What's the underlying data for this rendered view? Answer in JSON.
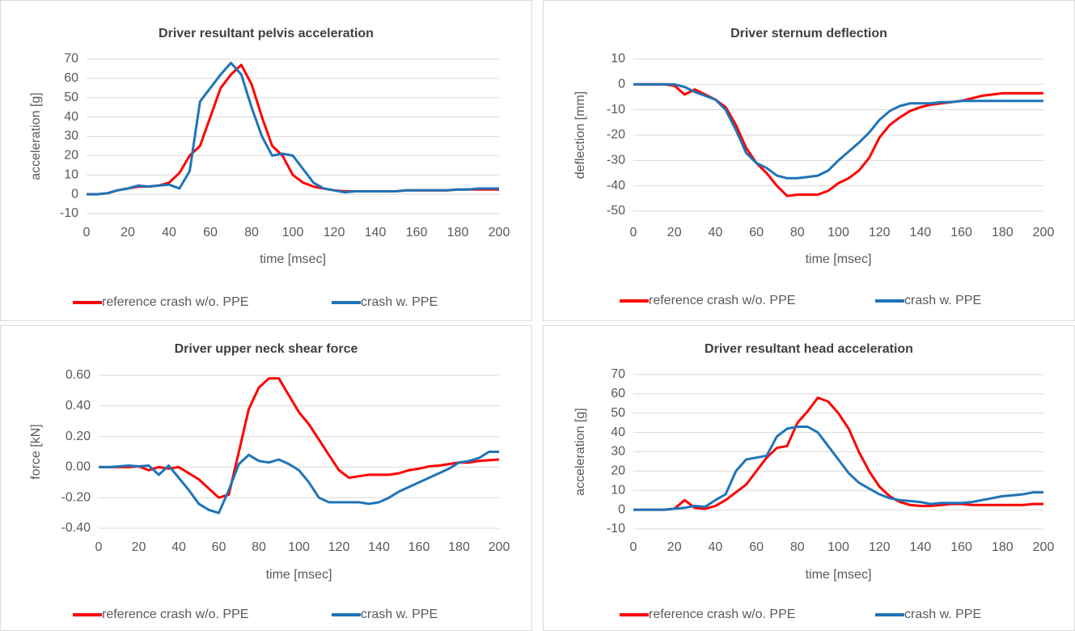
{
  "chart_data": [
    {
      "type": "line",
      "title": "Driver resultant pelvis acceleration",
      "x_label": "time [msec]",
      "y_label": "acceleration [g]",
      "x": [
        0,
        5,
        10,
        15,
        20,
        25,
        30,
        35,
        40,
        45,
        50,
        55,
        60,
        65,
        70,
        75,
        80,
        85,
        90,
        95,
        100,
        105,
        110,
        115,
        120,
        125,
        130,
        135,
        140,
        145,
        150,
        155,
        160,
        165,
        170,
        175,
        180,
        185,
        190,
        195,
        200
      ],
      "series": [
        {
          "name": "reference crash w/o. PPE",
          "color": "#ff0000",
          "values": [
            0,
            0,
            0.5,
            2,
            3,
            4,
            4,
            4.5,
            6,
            11,
            20,
            25,
            40,
            55,
            62,
            67,
            57,
            40,
            25,
            20,
            10,
            6,
            4,
            3,
            2,
            1.5,
            1.5,
            1.5,
            1.5,
            1.5,
            1.5,
            2,
            2,
            2,
            2,
            2,
            2.5,
            2.5,
            2.5,
            2.5,
            2.5
          ]
        },
        {
          "name": "crash w. PPE",
          "color": "#1f74b8",
          "values": [
            0,
            0,
            0.5,
            2,
            3,
            4.5,
            4,
            4.5,
            5,
            3,
            12,
            48,
            55,
            62,
            68,
            62,
            45,
            30,
            20,
            21,
            20,
            13,
            6,
            3,
            2,
            1,
            1.5,
            1.5,
            1.5,
            1.5,
            1.5,
            2,
            2,
            2,
            2,
            2,
            2.5,
            2.5,
            3,
            3,
            3
          ]
        }
      ],
      "xlim": [
        0,
        200
      ],
      "xticks": [
        0,
        20,
        40,
        60,
        80,
        100,
        120,
        140,
        160,
        180,
        200
      ],
      "ylim": [
        -10,
        70
      ],
      "yticks": [
        -10,
        0,
        10,
        20,
        30,
        40,
        50,
        60,
        70
      ],
      "grid": true,
      "legend": "bottom"
    },
    {
      "type": "line",
      "title": "Driver sternum deflection",
      "x_label": "time [msec]",
      "y_label": "deflection [mm]",
      "x": [
        0,
        5,
        10,
        15,
        20,
        25,
        30,
        35,
        40,
        45,
        50,
        55,
        60,
        65,
        70,
        75,
        80,
        85,
        90,
        95,
        100,
        105,
        110,
        115,
        120,
        125,
        130,
        135,
        140,
        145,
        150,
        155,
        160,
        165,
        170,
        175,
        180,
        185,
        190,
        195,
        200
      ],
      "series": [
        {
          "name": "reference crash w/o. PPE",
          "color": "#ff0000",
          "values": [
            0,
            0,
            0,
            0,
            -0.5,
            -4,
            -2,
            -4,
            -6,
            -9,
            -16,
            -25,
            -31,
            -35,
            -40,
            -44,
            -43.5,
            -43.5,
            -43.5,
            -42,
            -39,
            -37,
            -34,
            -29,
            -21,
            -16,
            -13,
            -10.5,
            -9,
            -8,
            -7.5,
            -7,
            -6.5,
            -5.5,
            -4.5,
            -4,
            -3.5,
            -3.5,
            -3.5,
            -3.5,
            -3.5
          ]
        },
        {
          "name": "crash w. PPE",
          "color": "#1f74b8",
          "values": [
            0,
            0,
            0,
            0,
            0,
            -1,
            -3,
            -4.5,
            -6,
            -10,
            -18,
            -27,
            -31,
            -33,
            -36,
            -37,
            -37,
            -36.5,
            -36,
            -34,
            -30,
            -26.5,
            -23,
            -19,
            -14,
            -10.5,
            -8.5,
            -7.5,
            -7.5,
            -7.5,
            -7,
            -7,
            -6.5,
            -6.5,
            -6.5,
            -6.5,
            -6.5,
            -6.5,
            -6.5,
            -6.5,
            -6.5
          ]
        }
      ],
      "xlim": [
        0,
        200
      ],
      "xticks": [
        0,
        20,
        40,
        60,
        80,
        100,
        120,
        140,
        160,
        180,
        200
      ],
      "ylim": [
        -50,
        10
      ],
      "yticks": [
        -50,
        -40,
        -30,
        -20,
        -10,
        0,
        10
      ],
      "grid": true,
      "legend": "bottom"
    },
    {
      "type": "line",
      "title": "Driver upper neck shear force",
      "x_label": "time [msec]",
      "y_label": "force [kN]",
      "x": [
        0,
        5,
        10,
        15,
        20,
        25,
        30,
        35,
        40,
        45,
        50,
        55,
        60,
        65,
        70,
        75,
        80,
        85,
        90,
        95,
        100,
        105,
        110,
        115,
        120,
        125,
        130,
        135,
        140,
        145,
        150,
        155,
        160,
        165,
        170,
        175,
        180,
        185,
        190,
        195,
        200
      ],
      "series": [
        {
          "name": "reference crash w/o. PPE",
          "color": "#ff0000",
          "values": [
            0,
            0,
            0,
            0,
            0.005,
            -0.02,
            0,
            -0.01,
            0,
            -0.04,
            -0.08,
            -0.14,
            -0.2,
            -0.18,
            0.1,
            0.38,
            0.52,
            0.58,
            0.58,
            0.47,
            0.36,
            0.28,
            0.18,
            0.08,
            -0.02,
            -0.07,
            -0.06,
            -0.05,
            -0.05,
            -0.05,
            -0.04,
            -0.02,
            -0.01,
            0.005,
            0.01,
            0.02,
            0.03,
            0.03,
            0.04,
            0.045,
            0.05
          ]
        },
        {
          "name": "crash w. PPE",
          "color": "#1f74b8",
          "values": [
            0,
            0,
            0.005,
            0.01,
            0.005,
            0.01,
            -0.05,
            0.01,
            -0.07,
            -0.15,
            -0.24,
            -0.28,
            -0.3,
            -0.15,
            0.02,
            0.08,
            0.04,
            0.03,
            0.05,
            0.02,
            -0.02,
            -0.1,
            -0.2,
            -0.23,
            -0.23,
            -0.23,
            -0.23,
            -0.24,
            -0.23,
            -0.2,
            -0.16,
            -0.13,
            -0.1,
            -0.07,
            -0.04,
            -0.01,
            0.03,
            0.04,
            0.06,
            0.1,
            0.1
          ]
        }
      ],
      "xlim": [
        0,
        200
      ],
      "xticks": [
        0,
        20,
        40,
        60,
        80,
        100,
        120,
        140,
        160,
        180,
        200
      ],
      "ylim": [
        -0.4,
        0.6
      ],
      "yticks": [
        {
          "value": -0.4,
          "label": "-0.40"
        },
        {
          "value": -0.2,
          "label": "-0.20"
        },
        {
          "value": 0,
          "label": "0.00"
        },
        {
          "value": 0.2,
          "label": "0.20"
        },
        {
          "value": 0.4,
          "label": "0.40"
        },
        {
          "value": 0.6,
          "label": "0.60"
        }
      ],
      "grid": true,
      "legend": "bottom"
    },
    {
      "type": "line",
      "title": "Driver resultant head acceleration",
      "x_label": "time [msec]",
      "y_label": "acceleration [g]",
      "x": [
        0,
        5,
        10,
        15,
        20,
        25,
        30,
        35,
        40,
        45,
        50,
        55,
        60,
        65,
        70,
        75,
        80,
        85,
        90,
        95,
        100,
        105,
        110,
        115,
        120,
        125,
        130,
        135,
        140,
        145,
        150,
        155,
        160,
        165,
        170,
        175,
        180,
        185,
        190,
        195,
        200
      ],
      "series": [
        {
          "name": "reference crash w/o. PPE",
          "color": "#ff0000",
          "values": [
            0,
            0,
            0,
            0,
            0.5,
            5,
            1,
            0.5,
            2,
            5,
            9,
            13,
            20,
            27,
            32,
            33,
            45,
            51,
            58,
            56,
            50,
            42,
            30,
            20,
            12,
            7,
            4,
            2.5,
            2,
            2,
            2.5,
            3,
            3,
            2.5,
            2.5,
            2.5,
            2.5,
            2.5,
            2.5,
            3,
            3
          ]
        },
        {
          "name": "crash w. PPE",
          "color": "#1f74b8",
          "values": [
            0,
            0,
            0,
            0,
            0.5,
            1,
            2,
            1.5,
            5,
            8,
            20,
            26,
            27,
            28,
            38,
            42,
            43,
            43,
            40,
            33,
            26,
            19,
            14,
            11,
            8,
            6,
            5,
            4.5,
            4,
            3,
            3.5,
            3.5,
            3.5,
            4,
            5,
            6,
            7,
            7.5,
            8,
            9,
            9
          ]
        }
      ],
      "xlim": [
        0,
        200
      ],
      "xticks": [
        0,
        20,
        40,
        60,
        80,
        100,
        120,
        140,
        160,
        180,
        200
      ],
      "ylim": [
        -10,
        70
      ],
      "yticks": [
        -10,
        0,
        10,
        20,
        30,
        40,
        50,
        60,
        70
      ],
      "grid": true,
      "legend": "bottom"
    }
  ]
}
